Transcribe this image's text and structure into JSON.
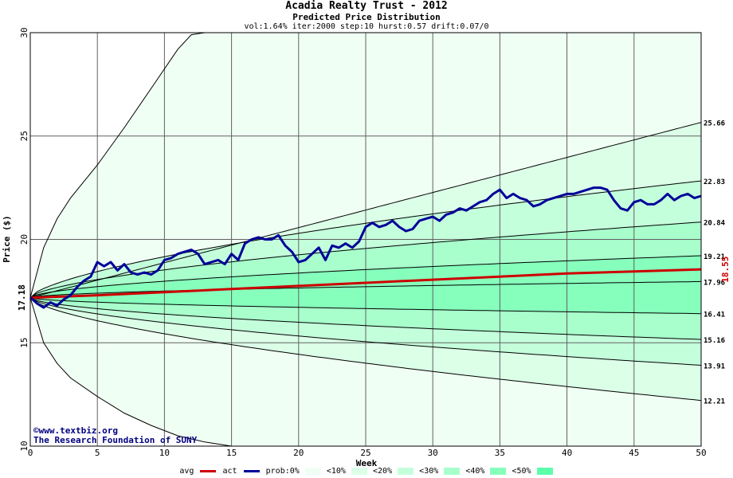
{
  "title": "Acadia Realty Trust - 2012",
  "subtitle": "Predicted Price Distribution",
  "params": "vol:1.64% iter:2000 step:10 hurst:0.57 drift:0.07/0",
  "credit": {
    "line1": "©www.textbiz.org",
    "line2": "The Research Foundation of SUNY"
  },
  "legend": {
    "avg": "avg",
    "act": "act",
    "prob": "prob:0%",
    "b10": "<10%",
    "b20": "<20%",
    "b30": "<30%",
    "b40": "<40%",
    "b50": "<50%"
  },
  "colors": {
    "band0": "#f0fff4",
    "band10": "#dcffe8",
    "band20": "#c4ffdc",
    "band30": "#a8ffcc",
    "band40": "#86ffbc",
    "band50": "#5cffaa",
    "avg": "#cc0000",
    "act": "#000099"
  },
  "chart_data": {
    "type": "line",
    "xlabel": "Week",
    "ylabel": "Price ($)",
    "xlim": [
      0,
      50
    ],
    "ylim": [
      10,
      30
    ],
    "xticks": [
      0,
      5,
      10,
      15,
      20,
      25,
      30,
      35,
      40,
      45,
      50
    ],
    "yticks": [
      10,
      15,
      20,
      25,
      30
    ],
    "start_price": "17.18",
    "end_avg_label": "18.55",
    "right_labels": [
      "25.66",
      "22.83",
      "20.84",
      "19.21",
      "17.96",
      "16.41",
      "15.16",
      "13.91",
      "12.21"
    ],
    "envelope": {
      "upper": [
        [
          0,
          17.18
        ],
        [
          1,
          19.6
        ],
        [
          2,
          21.0
        ],
        [
          3,
          22.0
        ],
        [
          5,
          23.6
        ],
        [
          7,
          25.4
        ],
        [
          9,
          27.3
        ],
        [
          11,
          29.2
        ],
        [
          12,
          29.9
        ],
        [
          13,
          30.0
        ]
      ],
      "lower": [
        [
          0,
          17.18
        ],
        [
          1,
          15.0
        ],
        [
          2,
          14.0
        ],
        [
          3,
          13.3
        ],
        [
          5,
          12.4
        ],
        [
          7,
          11.6
        ],
        [
          9,
          11.0
        ],
        [
          11,
          10.5
        ],
        [
          13,
          10.2
        ],
        [
          15,
          10.0
        ]
      ]
    },
    "percentile_curves": [
      {
        "name": "p0_hi",
        "end": 25.66,
        "k": 1.0,
        "w1": 1.2
      },
      {
        "name": "p10_hi",
        "end": 22.83,
        "k": 0.65,
        "w1": 0.55
      },
      {
        "name": "p20_hi",
        "end": 20.84,
        "k": 0.62,
        "w1": 0.33
      },
      {
        "name": "p30_hi",
        "end": 19.21,
        "k": 0.58,
        "w1": 0.18
      },
      {
        "name": "p40_hi",
        "end": 17.96,
        "k": 0.55,
        "w1": 0.03
      },
      {
        "name": "p40_lo",
        "end": 16.41,
        "k": 0.55,
        "w1": -0.12
      },
      {
        "name": "p30_lo",
        "end": 15.16,
        "k": 0.58,
        "w1": -0.27
      },
      {
        "name": "p20_lo",
        "end": 13.91,
        "k": 0.62,
        "w1": -0.42
      },
      {
        "name": "p10_lo",
        "end": 12.21,
        "k": 0.65,
        "w1": -0.62
      }
    ],
    "series": [
      {
        "name": "avg",
        "points": [
          [
            0,
            17.18
          ],
          [
            5,
            17.3
          ],
          [
            10,
            17.45
          ],
          [
            15,
            17.6
          ],
          [
            20,
            17.75
          ],
          [
            25,
            17.9
          ],
          [
            30,
            18.05
          ],
          [
            35,
            18.2
          ],
          [
            40,
            18.35
          ],
          [
            45,
            18.45
          ],
          [
            50,
            18.55
          ]
        ]
      },
      {
        "name": "act",
        "points": [
          [
            0,
            17.2
          ],
          [
            0.5,
            16.9
          ],
          [
            1,
            16.7
          ],
          [
            1.5,
            16.95
          ],
          [
            2,
            16.8
          ],
          [
            2.5,
            17.1
          ],
          [
            3,
            17.3
          ],
          [
            3.5,
            17.7
          ],
          [
            4,
            18.0
          ],
          [
            4.5,
            18.2
          ],
          [
            5,
            18.9
          ],
          [
            5.5,
            18.7
          ],
          [
            6,
            18.9
          ],
          [
            6.5,
            18.5
          ],
          [
            7,
            18.8
          ],
          [
            7.5,
            18.4
          ],
          [
            8,
            18.3
          ],
          [
            8.5,
            18.4
          ],
          [
            9,
            18.3
          ],
          [
            9.5,
            18.5
          ],
          [
            10,
            19.0
          ],
          [
            10.5,
            19.1
          ],
          [
            11,
            19.3
          ],
          [
            11.5,
            19.4
          ],
          [
            12,
            19.5
          ],
          [
            12.5,
            19.3
          ],
          [
            13,
            18.8
          ],
          [
            13.5,
            18.9
          ],
          [
            14,
            19.0
          ],
          [
            14.5,
            18.8
          ],
          [
            15,
            19.3
          ],
          [
            15.5,
            19.0
          ],
          [
            16,
            19.8
          ],
          [
            16.5,
            20.0
          ],
          [
            17,
            20.1
          ],
          [
            17.5,
            20.0
          ],
          [
            18,
            20.0
          ],
          [
            18.5,
            20.2
          ],
          [
            19,
            19.7
          ],
          [
            19.5,
            19.4
          ],
          [
            20,
            18.9
          ],
          [
            20.5,
            19.0
          ],
          [
            21,
            19.3
          ],
          [
            21.5,
            19.6
          ],
          [
            22,
            19.0
          ],
          [
            22.5,
            19.7
          ],
          [
            23,
            19.6
          ],
          [
            23.5,
            19.8
          ],
          [
            24,
            19.6
          ],
          [
            24.5,
            19.9
          ],
          [
            25,
            20.6
          ],
          [
            25.5,
            20.8
          ],
          [
            26,
            20.6
          ],
          [
            26.5,
            20.7
          ],
          [
            27,
            20.9
          ],
          [
            27.5,
            20.6
          ],
          [
            28,
            20.4
          ],
          [
            28.5,
            20.5
          ],
          [
            29,
            20.9
          ],
          [
            29.5,
            21.0
          ],
          [
            30,
            21.1
          ],
          [
            30.5,
            20.9
          ],
          [
            31,
            21.2
          ],
          [
            31.5,
            21.3
          ],
          [
            32,
            21.5
          ],
          [
            32.5,
            21.4
          ],
          [
            33,
            21.6
          ],
          [
            33.5,
            21.8
          ],
          [
            34,
            21.9
          ],
          [
            34.5,
            22.2
          ],
          [
            35,
            22.4
          ],
          [
            35.5,
            22.0
          ],
          [
            36,
            22.2
          ],
          [
            36.5,
            22.0
          ],
          [
            37,
            21.9
          ],
          [
            37.5,
            21.6
          ],
          [
            38,
            21.7
          ],
          [
            38.5,
            21.9
          ],
          [
            39,
            22.0
          ],
          [
            39.5,
            22.1
          ],
          [
            40,
            22.2
          ],
          [
            40.5,
            22.2
          ],
          [
            41,
            22.3
          ],
          [
            41.5,
            22.4
          ],
          [
            42,
            22.5
          ],
          [
            42.5,
            22.5
          ],
          [
            43,
            22.4
          ],
          [
            43.5,
            21.9
          ],
          [
            44,
            21.5
          ],
          [
            44.5,
            21.4
          ],
          [
            45,
            21.8
          ],
          [
            45.5,
            21.9
          ],
          [
            46,
            21.7
          ],
          [
            46.5,
            21.7
          ],
          [
            47,
            21.9
          ],
          [
            47.5,
            22.2
          ],
          [
            48,
            21.9
          ],
          [
            48.5,
            22.1
          ],
          [
            49,
            22.2
          ],
          [
            49.5,
            22.0
          ],
          [
            50,
            22.1
          ]
        ]
      }
    ]
  }
}
